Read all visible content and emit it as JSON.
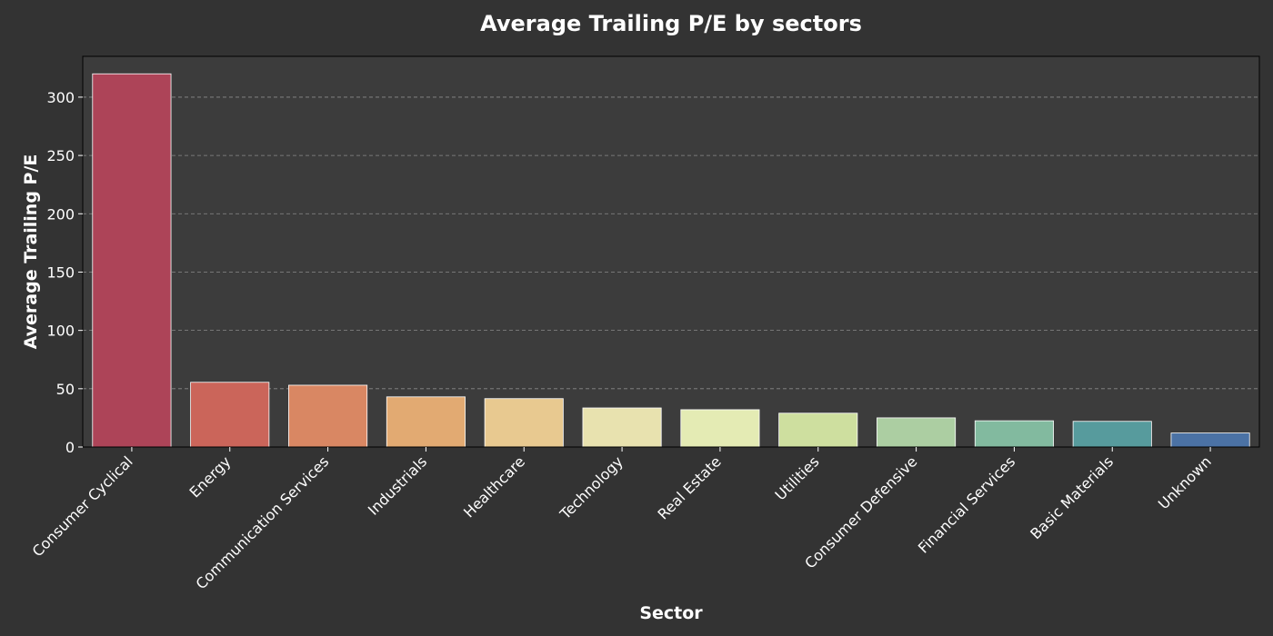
{
  "chart_data": {
    "type": "bar",
    "title": "Average Trailing P/E by sectors",
    "xlabel": "Sector",
    "ylabel": "Average Trailing P/E",
    "categories": [
      "Consumer Cyclical",
      "Energy",
      "Communication Services",
      "Industrials",
      "Healthcare",
      "Technology",
      "Real Estate",
      "Utilities",
      "Consumer Defensive",
      "Financial Services",
      "Basic Materials",
      "Unknown"
    ],
    "values": [
      320,
      55.5,
      53,
      43,
      41.5,
      33.5,
      32,
      29,
      25,
      22.5,
      22,
      12
    ],
    "ylim": [
      0,
      335
    ],
    "yticks": [
      0,
      50,
      100,
      150,
      200,
      250,
      300
    ],
    "grid": "y-dashed",
    "legend": "none",
    "bar_colors": [
      "#ad4458",
      "#cb655a",
      "#d98763",
      "#e2aa72",
      "#e8c990",
      "#e8e2af",
      "#e4ebb4",
      "#cedf9f",
      "#accea2",
      "#82ba9f",
      "#579b9d",
      "#4b72a5"
    ],
    "colors": {
      "background": "#333333",
      "plot_background": "#3c3c3c",
      "text": "#ffffff",
      "grid": "#8a8a8a",
      "bar_edge": "#ffffff"
    }
  }
}
